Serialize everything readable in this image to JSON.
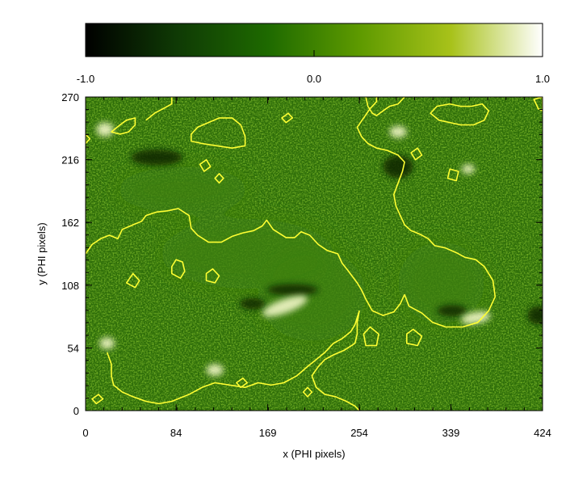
{
  "chart_data": {
    "type": "heatmap",
    "xlabel": "x (PHI pixels)",
    "ylabel": "y (PHI pixels)",
    "xlim": [
      0,
      424
    ],
    "ylim": [
      0,
      270
    ],
    "x_ticks": [
      "0",
      "84",
      "169",
      "254",
      "339",
      "424"
    ],
    "y_ticks": [
      "0",
      "54",
      "108",
      "162",
      "216",
      "270"
    ],
    "colorbar": {
      "range": [
        -1.0,
        1.0
      ],
      "tick_labels": [
        "-1.0",
        "0.0",
        "1.0"
      ],
      "colors": [
        "#000000",
        "#0f3a05",
        "#1e6a00",
        "#5e9a00",
        "#a8c21a",
        "#ffffff"
      ]
    },
    "contour_color": "#ffff33",
    "contours": [
      {
        "closed": false,
        "points": [
          [
            0,
            135
          ],
          [
            6,
            143
          ],
          [
            14,
            148
          ],
          [
            22,
            151
          ],
          [
            30,
            148
          ],
          [
            34,
            156
          ],
          [
            44,
            160
          ],
          [
            52,
            163
          ],
          [
            56,
            168
          ],
          [
            66,
            171
          ],
          [
            76,
            172
          ],
          [
            86,
            174
          ],
          [
            96,
            168
          ],
          [
            98,
            157
          ],
          [
            104,
            151
          ],
          [
            114,
            145
          ],
          [
            126,
            145
          ],
          [
            136,
            150
          ],
          [
            146,
            153
          ],
          [
            156,
            155
          ],
          [
            164,
            159
          ],
          [
            168,
            164
          ],
          [
            174,
            156
          ],
          [
            186,
            149
          ],
          [
            194,
            149
          ],
          [
            200,
            154
          ],
          [
            208,
            151
          ],
          [
            216,
            143
          ],
          [
            224,
            138
          ],
          [
            234,
            135
          ],
          [
            238,
            127
          ],
          [
            244,
            120
          ],
          [
            252,
            110
          ],
          [
            256,
            104
          ],
          [
            260,
            96
          ],
          [
            266,
            86
          ],
          [
            276,
            82
          ],
          [
            286,
            85
          ],
          [
            292,
            92
          ],
          [
            296,
            100
          ]
        ]
      },
      {
        "closed": false,
        "points": [
          [
            296,
            100
          ],
          [
            300,
            90
          ],
          [
            312,
            84
          ],
          [
            322,
            76
          ],
          [
            334,
            72
          ],
          [
            350,
            72
          ],
          [
            364,
            76
          ],
          [
            374,
            86
          ],
          [
            380,
            98
          ],
          [
            378,
            112
          ],
          [
            370,
            124
          ],
          [
            362,
            130
          ],
          [
            352,
            132
          ],
          [
            344,
            136
          ],
          [
            334,
            140
          ],
          [
            324,
            142
          ],
          [
            318,
            148
          ],
          [
            310,
            152
          ],
          [
            302,
            155
          ],
          [
            296,
            160
          ],
          [
            292,
            168
          ],
          [
            288,
            176
          ],
          [
            286,
            186
          ],
          [
            290,
            196
          ],
          [
            294,
            206
          ],
          [
            296,
            214
          ],
          [
            290,
            220
          ],
          [
            280,
            224
          ],
          [
            270,
            226
          ],
          [
            262,
            230
          ],
          [
            256,
            236
          ],
          [
            252,
            244
          ],
          [
            258,
            252
          ],
          [
            264,
            260
          ],
          [
            270,
            266
          ],
          [
            270,
            270
          ]
        ]
      },
      {
        "closed": false,
        "points": [
          [
            20,
            50
          ],
          [
            24,
            40
          ],
          [
            24,
            30
          ],
          [
            26,
            22
          ],
          [
            34,
            16
          ],
          [
            44,
            12
          ],
          [
            56,
            8
          ],
          [
            68,
            6
          ],
          [
            80,
            8
          ],
          [
            96,
            14
          ],
          [
            108,
            20
          ],
          [
            120,
            24
          ],
          [
            134,
            22
          ],
          [
            148,
            20
          ],
          [
            160,
            24
          ],
          [
            172,
            22
          ],
          [
            184,
            24
          ],
          [
            196,
            30
          ],
          [
            206,
            38
          ],
          [
            214,
            44
          ],
          [
            222,
            50
          ],
          [
            230,
            58
          ],
          [
            238,
            62
          ],
          [
            246,
            68
          ],
          [
            250,
            74
          ],
          [
            252,
            80
          ],
          [
            254,
            86
          ]
        ]
      },
      {
        "closed": false,
        "points": [
          [
            254,
            86
          ],
          [
            252,
            76
          ],
          [
            252,
            66
          ],
          [
            250,
            58
          ],
          [
            240,
            52
          ],
          [
            230,
            48
          ],
          [
            222,
            44
          ],
          [
            216,
            38
          ],
          [
            210,
            30
          ],
          [
            214,
            20
          ],
          [
            222,
            14
          ],
          [
            232,
            12
          ],
          [
            242,
            8
          ],
          [
            250,
            4
          ],
          [
            254,
            0
          ]
        ]
      },
      {
        "closed": true,
        "points": [
          [
            24,
            240
          ],
          [
            32,
            246
          ],
          [
            38,
            250
          ],
          [
            46,
            252
          ],
          [
            46,
            246
          ],
          [
            40,
            240
          ],
          [
            32,
            238
          ]
        ]
      },
      {
        "closed": false,
        "points": [
          [
            56,
            250
          ],
          [
            64,
            256
          ],
          [
            72,
            260
          ],
          [
            80,
            264
          ],
          [
            80,
            270
          ]
        ]
      },
      {
        "closed": true,
        "points": [
          [
            98,
            232
          ],
          [
            108,
            230
          ],
          [
            122,
            228
          ],
          [
            136,
            226
          ],
          [
            148,
            228
          ],
          [
            148,
            236
          ],
          [
            144,
            246
          ],
          [
            136,
            252
          ],
          [
            124,
            252
          ],
          [
            114,
            248
          ],
          [
            104,
            244
          ],
          [
            98,
            238
          ]
        ]
      },
      {
        "closed": false,
        "points": [
          [
            260,
            270
          ],
          [
            262,
            262
          ],
          [
            266,
            256
          ],
          [
            270,
            254
          ],
          [
            276,
            258
          ],
          [
            282,
            262
          ],
          [
            290,
            264
          ],
          [
            296,
            270
          ]
        ]
      },
      {
        "closed": true,
        "points": [
          [
            320,
            256
          ],
          [
            326,
            262
          ],
          [
            338,
            264
          ],
          [
            348,
            262
          ],
          [
            358,
            262
          ],
          [
            368,
            264
          ],
          [
            374,
            258
          ],
          [
            370,
            250
          ],
          [
            360,
            246
          ],
          [
            348,
            246
          ],
          [
            338,
            248
          ],
          [
            328,
            250
          ]
        ]
      },
      {
        "closed": true,
        "points": [
          [
            416,
            268
          ],
          [
            420,
            260
          ],
          [
            424,
            258
          ],
          [
            424,
            270
          ]
        ]
      },
      {
        "closed": true,
        "points": [
          [
            80,
            118
          ],
          [
            88,
            114
          ],
          [
            92,
            120
          ],
          [
            90,
            128
          ],
          [
            84,
            130
          ],
          [
            80,
            124
          ]
        ]
      },
      {
        "closed": true,
        "points": [
          [
            112,
            112
          ],
          [
            120,
            110
          ],
          [
            124,
            116
          ],
          [
            118,
            122
          ],
          [
            112,
            118
          ]
        ]
      },
      {
        "closed": true,
        "points": [
          [
            38,
            110
          ],
          [
            46,
            106
          ],
          [
            50,
            112
          ],
          [
            44,
            118
          ]
        ]
      },
      {
        "closed": true,
        "points": [
          [
            260,
            56
          ],
          [
            270,
            56
          ],
          [
            272,
            66
          ],
          [
            264,
            72
          ],
          [
            258,
            66
          ]
        ]
      },
      {
        "closed": true,
        "points": [
          [
            298,
            58
          ],
          [
            308,
            56
          ],
          [
            312,
            64
          ],
          [
            304,
            70
          ],
          [
            298,
            66
          ]
        ]
      },
      {
        "closed": true,
        "points": [
          [
            124,
            196
          ],
          [
            128,
            200
          ],
          [
            124,
            204
          ],
          [
            120,
            200
          ]
        ]
      },
      {
        "closed": true,
        "points": [
          [
            306,
            216
          ],
          [
            312,
            220
          ],
          [
            308,
            226
          ],
          [
            302,
            222
          ]
        ]
      },
      {
        "closed": true,
        "points": [
          [
            336,
            200
          ],
          [
            344,
            198
          ],
          [
            346,
            206
          ],
          [
            338,
            208
          ]
        ]
      },
      {
        "closed": true,
        "points": [
          [
            110,
            206
          ],
          [
            116,
            210
          ],
          [
            112,
            216
          ],
          [
            106,
            212
          ]
        ]
      },
      {
        "closed": true,
        "points": [
          [
            206,
            12
          ],
          [
            210,
            16
          ],
          [
            206,
            20
          ],
          [
            202,
            16
          ]
        ]
      },
      {
        "closed": true,
        "points": [
          [
            10,
            6
          ],
          [
            16,
            10
          ],
          [
            12,
            14
          ],
          [
            6,
            10
          ]
        ]
      },
      {
        "closed": true,
        "points": [
          [
            144,
            20
          ],
          [
            150,
            24
          ],
          [
            146,
            28
          ],
          [
            140,
            24
          ]
        ]
      },
      {
        "closed": true,
        "points": [
          [
            0,
            230
          ],
          [
            4,
            234
          ],
          [
            0,
            238
          ]
        ]
      },
      {
        "closed": true,
        "points": [
          [
            186,
            248
          ],
          [
            192,
            252
          ],
          [
            188,
            256
          ],
          [
            182,
            252
          ]
        ]
      }
    ],
    "bright_regions": [
      {
        "cx": 185,
        "cy": 90,
        "rx": 22,
        "ry": 6,
        "tilt": -20
      },
      {
        "cx": 362,
        "cy": 80,
        "rx": 14,
        "ry": 5,
        "tilt": -10
      },
      {
        "cx": 18,
        "cy": 242,
        "rx": 8,
        "ry": 6,
        "tilt": 0
      },
      {
        "cx": 290,
        "cy": 240,
        "rx": 8,
        "ry": 5,
        "tilt": 0
      },
      {
        "cx": 20,
        "cy": 58,
        "rx": 7,
        "ry": 5,
        "tilt": 0
      },
      {
        "cx": 355,
        "cy": 208,
        "rx": 6,
        "ry": 4,
        "tilt": 0
      },
      {
        "cx": 120,
        "cy": 35,
        "rx": 8,
        "ry": 5,
        "tilt": 0
      }
    ],
    "dark_regions": [
      {
        "cx": 420,
        "cy": 82,
        "rx": 10,
        "ry": 8
      },
      {
        "cx": 192,
        "cy": 104,
        "rx": 24,
        "ry": 5
      },
      {
        "cx": 340,
        "cy": 86,
        "rx": 14,
        "ry": 5
      },
      {
        "cx": 155,
        "cy": 92,
        "rx": 12,
        "ry": 5
      },
      {
        "cx": 66,
        "cy": 218,
        "rx": 24,
        "ry": 7
      },
      {
        "cx": 290,
        "cy": 210,
        "rx": 14,
        "ry": 10
      }
    ]
  }
}
